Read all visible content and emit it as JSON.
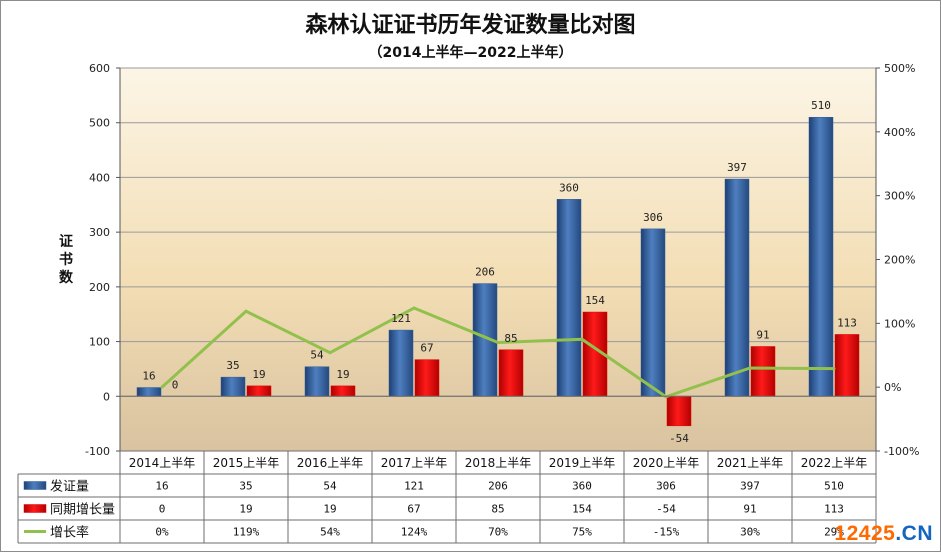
{
  "title": "森林认证证书历年发证数量比对图",
  "subtitle": "（2014上半年—2022上半年）",
  "watermark": {
    "part1": "12425",
    "part2": ".CN"
  },
  "colors": {
    "bar_primary": "#2e5c9a",
    "bar_secondary": "#e00000",
    "line": "#92c04d"
  },
  "chart_data": {
    "type": "bar",
    "categories": [
      "2014上半年",
      "2015上半年",
      "2016上半年",
      "2017上半年",
      "2018上半年",
      "2019上半年",
      "2020上半年",
      "2021上半年",
      "2022上半年"
    ],
    "series": [
      {
        "name": "发证量",
        "kind": "bar",
        "axis": "left",
        "values": [
          16,
          35,
          54,
          121,
          206,
          360,
          306,
          397,
          510
        ],
        "labels": [
          "16",
          "35",
          "54",
          "121",
          "206",
          "360",
          "306",
          "397",
          "510"
        ]
      },
      {
        "name": "同期增长量",
        "kind": "bar",
        "axis": "left",
        "values": [
          0,
          19,
          19,
          67,
          85,
          154,
          -54,
          91,
          113
        ],
        "labels": [
          "0",
          "19",
          "19",
          "67",
          "85",
          "154",
          "-54",
          "91",
          "113"
        ]
      },
      {
        "name": "增长率",
        "kind": "line",
        "axis": "right",
        "values": [
          0,
          119,
          54,
          124,
          70,
          75,
          -15,
          30,
          29
        ],
        "labels": [
          "0%",
          "119%",
          "54%",
          "124%",
          "70%",
          "75%",
          "-15%",
          "30%",
          "29%"
        ]
      }
    ],
    "ylabel": "证书数",
    "ylim": [
      -100,
      600
    ],
    "yticks": [
      -100,
      0,
      100,
      200,
      300,
      400,
      500,
      600
    ],
    "ytick_labels": [
      "-100",
      "0",
      "100",
      "200",
      "300",
      "400",
      "500",
      "600"
    ],
    "y2lim": [
      -100,
      500
    ],
    "y2ticks": [
      -100,
      0,
      100,
      200,
      300,
      400,
      500
    ],
    "y2tick_labels": [
      "-100%",
      "0%",
      "100%",
      "200%",
      "300%",
      "400%",
      "500%"
    ],
    "grid": true,
    "legend": "data-table"
  }
}
